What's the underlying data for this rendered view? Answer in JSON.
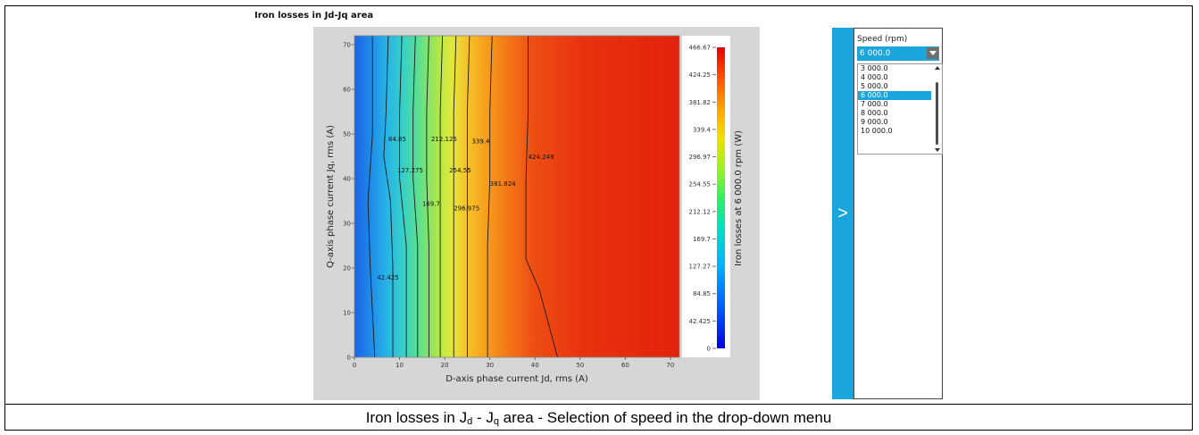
{
  "figure": {
    "caption_main": "Iron losses in J",
    "caption_sub_d": "d",
    "caption_mid": " - J",
    "caption_sub_q": "q",
    "caption_tail": " area - Selection of speed in the drop-down menu"
  },
  "panel": {
    "title": "Iron losses in Jd-Jq area",
    "toggle_glyph": ">"
  },
  "speed_selector": {
    "label": "Speed (rpm)",
    "selected": "6 000.0",
    "options": [
      "3 000.0",
      "4 000.0",
      "5 000.0",
      "6 000.0",
      "7 000.0",
      "8 000.0",
      "9 000.0",
      "10 000.0"
    ],
    "selected_index": 3
  },
  "chart_data": {
    "type": "heatmap",
    "xlabel": "D-axis phase current Jd, rms (A)",
    "ylabel": "Q-axis phase current Jq, rms (A)",
    "colorbar_label": "Iron losses at 6 000.0 rpm (W)",
    "xlim": [
      0,
      72
    ],
    "ylim": [
      0,
      72
    ],
    "x_ticks": [
      0,
      10,
      20,
      30,
      40,
      50,
      60,
      70
    ],
    "y_ticks": [
      0,
      10,
      20,
      30,
      40,
      50,
      60,
      70
    ],
    "colorbar_range": [
      0,
      466.67
    ],
    "colorbar_ticks": [
      "0",
      "42.425",
      "84.85",
      "127.27",
      "169.7",
      "212.12",
      "254.55",
      "296.97",
      "339.4",
      "381.82",
      "424.25",
      "466.67"
    ],
    "contours": [
      {
        "level": 42.425,
        "label": "42.425",
        "points": [
          [
            4,
            72
          ],
          [
            4,
            50
          ],
          [
            3,
            35
          ],
          [
            3.5,
            20
          ],
          [
            4.5,
            0
          ]
        ],
        "label_at": [
          5,
          18
        ]
      },
      {
        "level": 84.85,
        "label": "84.85",
        "points": [
          [
            7.5,
            72
          ],
          [
            7,
            55
          ],
          [
            6.5,
            45
          ],
          [
            8,
            35
          ],
          [
            8.5,
            20
          ],
          [
            8.5,
            0
          ]
        ],
        "label_at": [
          7.5,
          49
        ]
      },
      {
        "level": 127.275,
        "label": "127.275",
        "points": [
          [
            10.5,
            72
          ],
          [
            10,
            55
          ],
          [
            10,
            40
          ],
          [
            11.5,
            25
          ],
          [
            11.5,
            0
          ]
        ],
        "label_at": [
          9.5,
          42
        ]
      },
      {
        "level": 169.7,
        "label": "169.7",
        "points": [
          [
            13.5,
            72
          ],
          [
            13,
            55
          ],
          [
            13,
            40
          ],
          [
            14,
            25
          ],
          [
            14,
            0
          ]
        ],
        "label_at": [
          15,
          34.5
        ]
      },
      {
        "level": 212.125,
        "label": "212.125",
        "points": [
          [
            16.5,
            72
          ],
          [
            16,
            55
          ],
          [
            16,
            40
          ],
          [
            16.5,
            25
          ],
          [
            16.5,
            0
          ]
        ],
        "label_at": [
          17,
          49
        ]
      },
      {
        "level": 254.55,
        "label": "254.55",
        "points": [
          [
            19.5,
            72
          ],
          [
            19,
            55
          ],
          [
            19,
            40
          ],
          [
            19,
            25
          ],
          [
            19,
            0
          ]
        ],
        "label_at": [
          21,
          42
        ]
      },
      {
        "level": 296.975,
        "label": "296.975",
        "points": [
          [
            22.5,
            72
          ],
          [
            22,
            55
          ],
          [
            22,
            40
          ],
          [
            22,
            25
          ],
          [
            22,
            0
          ]
        ],
        "label_at": [
          22,
          33.5
        ]
      },
      {
        "level": 339.4,
        "label": "339.4",
        "points": [
          [
            25.5,
            72
          ],
          [
            25,
            55
          ],
          [
            25,
            40
          ],
          [
            25,
            25
          ],
          [
            25,
            0
          ]
        ],
        "label_at": [
          26,
          48.5
        ]
      },
      {
        "level": 381.824,
        "label": "381.824",
        "points": [
          [
            30.5,
            72
          ],
          [
            30,
            55
          ],
          [
            30,
            40
          ],
          [
            29.5,
            25
          ],
          [
            29.5,
            0
          ]
        ],
        "label_at": [
          30,
          39
        ]
      },
      {
        "level": 424.249,
        "label": "424.249",
        "points": [
          [
            38.5,
            72
          ],
          [
            38.5,
            55
          ],
          [
            38,
            40
          ],
          [
            38,
            22
          ],
          [
            41,
            15
          ],
          [
            45,
            0
          ]
        ],
        "label_at": [
          38.5,
          45
        ]
      }
    ]
  }
}
